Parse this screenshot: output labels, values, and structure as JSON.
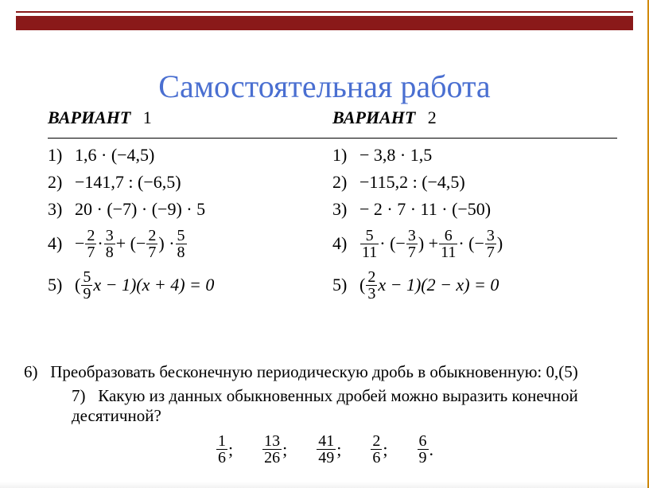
{
  "title": "Самостоятельная работа",
  "variant_label": "ВАРИАНТ",
  "colors": {
    "border": "#8a1919",
    "title": "#4a6fd1",
    "right_rule": "#d08a0a"
  },
  "v1": {
    "num": "1",
    "r1": {
      "lbl": "1)",
      "expr": "1,6 · (−4,5)"
    },
    "r2": {
      "lbl": "2)",
      "expr": "−141,7 : (−6,5)"
    },
    "r3": {
      "lbl": "3)",
      "expr": "20 · (−7) · (−9) · 5"
    },
    "r4": {
      "lbl": "4)",
      "pre": "−",
      "f1n": "2",
      "f1d": "7",
      "m1": "·",
      "f2n": "3",
      "f2d": "8",
      "m2": "+ (−",
      "f3n": "2",
      "f3d": "7",
      "m3": ") ·",
      "f4n": "5",
      "f4d": "8"
    },
    "r5": {
      "lbl": "5)",
      "pre": "(",
      "f1n": "5",
      "f1d": "9",
      "post": "x − 1)(x + 4) = 0"
    }
  },
  "v2": {
    "num": "2",
    "r1": {
      "lbl": "1)",
      "expr": "− 3,8 · 1,5"
    },
    "r2": {
      "lbl": "2)",
      "expr": "−115,2 : (−4,5)"
    },
    "r3": {
      "lbl": "3)",
      "expr": "− 2 · 7 · 11 · (−50)"
    },
    "r4": {
      "lbl": "4)",
      "f1n": "5",
      "f1d": "11",
      "m1": "· (−",
      "f2n": "3",
      "f2d": "7",
      "m2": ") +",
      "f3n": "6",
      "f3d": "11",
      "m3": "· (−",
      "f4n": "3",
      "f4d": "7",
      "m4": ")"
    },
    "r5": {
      "lbl": "5)",
      "pre": "(",
      "f1n": "2",
      "f1d": "3",
      "post": "x − 1)(2 − x) = 0"
    }
  },
  "q6": {
    "lbl": "6)",
    "text": "Преобразовать бесконечную периодическую дробь в обыкновенную: 0,(5)"
  },
  "q7": {
    "lbl": "7)",
    "text": "Какую из данных обыкновенных дробей можно выразить конечной десятичной?",
    "fracs": [
      {
        "n": "1",
        "d": "6",
        "sep": ";"
      },
      {
        "n": "13",
        "d": "26",
        "sep": ";"
      },
      {
        "n": "41",
        "d": "49",
        "sep": ";"
      },
      {
        "n": "2",
        "d": "6",
        "sep": ";"
      },
      {
        "n": "6",
        "d": "9",
        "sep": "."
      }
    ]
  }
}
